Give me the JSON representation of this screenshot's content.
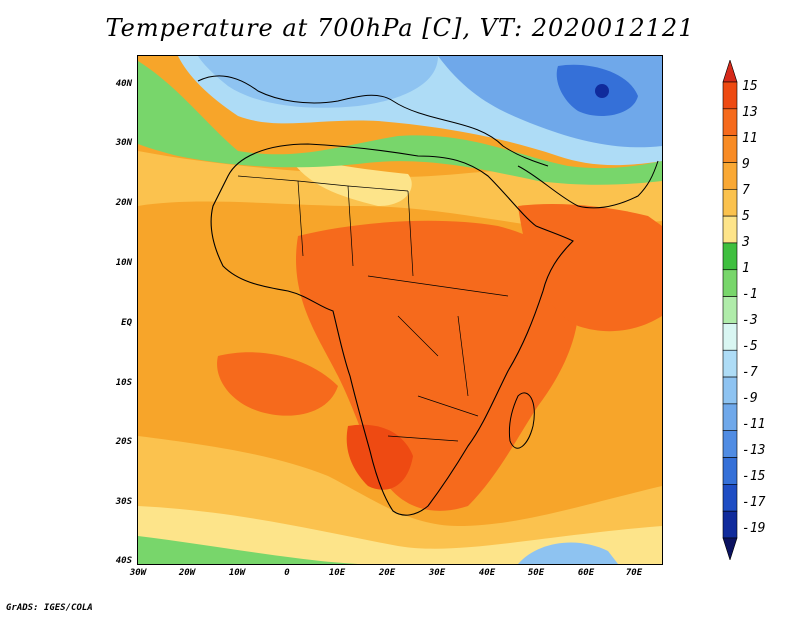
{
  "title": "Temperature at 700hPa [C], VT: 2020012121",
  "credit": "GrADS: IGES/COLA",
  "y_axis_labels": [
    "40N",
    "30N",
    "20N",
    "10N",
    "EQ",
    "10S",
    "20S",
    "30S",
    "40S"
  ],
  "x_axis_labels": [
    "30W",
    "20W",
    "10W",
    "0",
    "10E",
    "20E",
    "30E",
    "40E",
    "50E",
    "60E",
    "70E"
  ],
  "colorbar": {
    "labels": [
      "15",
      "13",
      "11",
      "9",
      "7",
      "5",
      "3",
      "1",
      "-1",
      "-3",
      "-5",
      "-7",
      "-9",
      "-11",
      "-13",
      "-15",
      "-17",
      "-19"
    ],
    "colors": [
      "#d62a1a",
      "#ee4a12",
      "#f66a1c",
      "#f88b24",
      "#f9a834",
      "#fbc24e",
      "#fde48a",
      "#3fbf3f",
      "#78d66b",
      "#b0ecaa",
      "#d9f6f2",
      "#aedcf6",
      "#8ec3f1",
      "#6fa8ea",
      "#508ce3",
      "#3570d8",
      "#1e4dc4",
      "#102b9c",
      "#0b1260"
    ]
  }
}
